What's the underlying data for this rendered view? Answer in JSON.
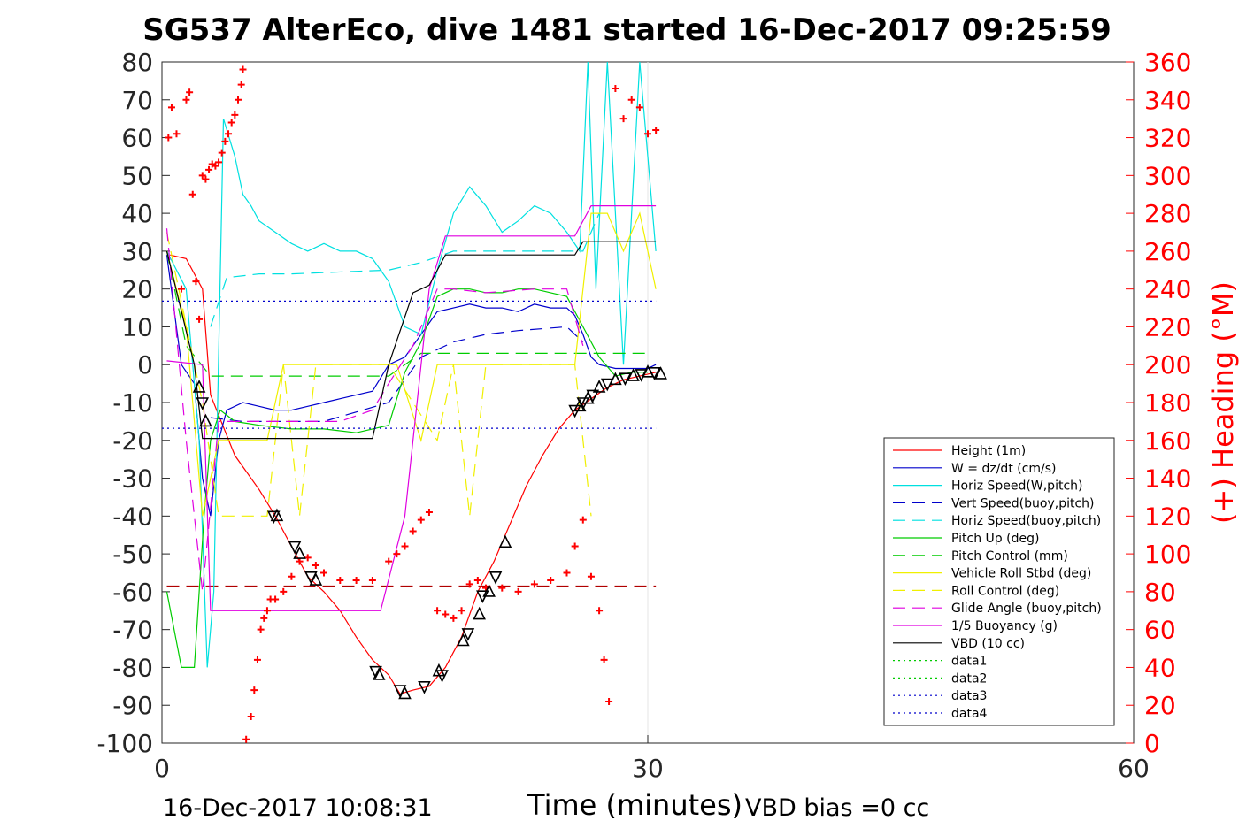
{
  "chart_data": {
    "type": "line",
    "title": "SG537 AlterEco, dive 1481 started 16-Dec-2017 09:25:59",
    "xlabel": "Time (minutes)",
    "ylabel": "",
    "ylabel_right": "(+) Heading (°M)",
    "xlim": [
      0,
      60
    ],
    "ylim": [
      -100,
      80
    ],
    "ylim_right": [
      0,
      360
    ],
    "xticks": [
      "0",
      "30",
      "60"
    ],
    "yticks": [
      "80",
      "70",
      "60",
      "50",
      "40",
      "30",
      "20",
      "10",
      "0",
      "-10",
      "-20",
      "-30",
      "-40",
      "-50",
      "-60",
      "-70",
      "-80",
      "-90",
      "-100"
    ],
    "yticks_right": [
      "360",
      "340",
      "320",
      "300",
      "280",
      "260",
      "240",
      "220",
      "200",
      "180",
      "160",
      "140",
      "120",
      "100",
      "80",
      "60",
      "40",
      "20",
      "0"
    ],
    "grid": "x at 30 only",
    "legend_position": "lower-right",
    "footer_left": "16-Dec-2017 10:08:31",
    "footer_right": "VBD bias =0 cc",
    "series": [
      {
        "name": "Height (1m)",
        "color": "#ff0000",
        "style": "solid",
        "x": [
          0.5,
          1.5,
          2.5,
          3.0,
          4.5,
          6.0,
          7.0,
          8.0,
          9.0,
          10.0,
          11.0,
          12.0,
          13.0,
          14.0,
          14.7,
          15.5,
          16.5,
          17.5,
          18.5,
          19.5,
          20.5,
          21.5,
          22.5,
          23.5,
          24.5,
          25.5,
          26.5,
          27.5,
          28.5,
          29.5,
          30.5
        ],
        "y": [
          29,
          28,
          20,
          -8,
          -24,
          -33,
          -40,
          -48,
          -56,
          -60,
          -65,
          -72,
          -78,
          -82,
          -87,
          -86,
          -85,
          -80,
          -72,
          -60,
          -52,
          -42,
          -32,
          -24,
          -17,
          -12,
          -9,
          -6,
          -4,
          -3,
          -2
        ]
      },
      {
        "name": "W = dz/dt (cm/s)",
        "color": "#0000cc",
        "style": "solid",
        "x": [
          0.3,
          1.2,
          2.0,
          2.5,
          3.0,
          3.5,
          4.0,
          5.0,
          6.0,
          7.0,
          8.0,
          9.0,
          10.0,
          11.0,
          12.0,
          13.0,
          14.0,
          15.0,
          16.0,
          17.0,
          18.0,
          19.0,
          20.0,
          21.0,
          22.0,
          23.0,
          24.0,
          25.0,
          25.5,
          26.0,
          26.5,
          27.0,
          28.0,
          29.0,
          30.0,
          30.5
        ],
        "y": [
          29,
          0,
          -5,
          -30,
          -40,
          -20,
          -12,
          -10,
          -11,
          -12,
          -12,
          -11,
          -10,
          -9,
          -8,
          -7,
          0,
          2,
          8,
          14,
          15,
          16,
          15,
          15,
          14,
          16,
          15,
          15,
          13,
          8,
          2,
          0,
          -1,
          -1,
          -1,
          0
        ]
      },
      {
        "name": "Horiz Speed(W,pitch)",
        "color": "#00e0e0",
        "style": "solid",
        "x": [
          0.3,
          1.5,
          2.3,
          2.8,
          3.2,
          3.8,
          4.5,
          5.0,
          5.5,
          6.0,
          7.0,
          8.0,
          9.0,
          10.0,
          11.0,
          12.0,
          13.0,
          14.0,
          15.0,
          16.0,
          17.0,
          18.0,
          19.0,
          20.0,
          21.0,
          22.0,
          23.0,
          24.0,
          25.0,
          25.8,
          26.3,
          26.8,
          27.5,
          28.5,
          29.5,
          30.5
        ],
        "y": [
          30,
          20,
          -20,
          -80,
          -60,
          65,
          55,
          45,
          42,
          38,
          35,
          32,
          30,
          32,
          30,
          30,
          28,
          22,
          10,
          8,
          25,
          40,
          47,
          42,
          35,
          38,
          42,
          40,
          35,
          30,
          80,
          20,
          80,
          0,
          80,
          30
        ]
      },
      {
        "name": "Vert Speed(buoy,pitch)",
        "color": "#0000cc",
        "style": "dashed",
        "x": [
          3.0,
          5.0,
          10.0,
          14.0,
          16.0,
          18.0,
          20.0,
          22.0,
          25.0,
          26.0
        ],
        "y": [
          -14,
          -15,
          -15,
          -10,
          2,
          6,
          8,
          9,
          10,
          6
        ]
      },
      {
        "name": "Horiz Speed(buoy,pitch)",
        "color": "#00e0e0",
        "style": "dashed",
        "x": [
          3.0,
          4.0,
          6.0,
          8.0,
          14.0,
          16.0,
          18.0,
          20.0,
          24.0,
          26.0,
          27.0
        ],
        "y": [
          10,
          23,
          24,
          24,
          25,
          27,
          30,
          30,
          30,
          30,
          40
        ]
      },
      {
        "name": "Pitch Up (deg)",
        "color": "#00cc00",
        "style": "solid",
        "x": [
          0.3,
          1.2,
          2.0,
          2.6,
          3.0,
          3.6,
          4.5,
          6.0,
          8.0,
          10.0,
          12.0,
          14.0,
          15.0,
          16.0,
          17.0,
          18.0,
          19.0,
          20.0,
          21.0,
          22.0,
          23.0,
          24.0,
          25.0,
          26.0,
          27.0,
          28.0,
          29.0,
          30.0
        ],
        "y": [
          -60,
          -80,
          -80,
          -40,
          -20,
          -12,
          -15,
          -16,
          -17,
          -17,
          -18,
          -16,
          -2,
          6,
          18,
          20,
          20,
          19,
          19,
          20,
          20,
          19,
          18,
          10,
          2,
          -3,
          -2,
          -2
        ]
      },
      {
        "name": "Pitch Control (mm)",
        "color": "#00cc00",
        "style": "dashed",
        "x": [
          0.3,
          1.5,
          3.0,
          8.0,
          14.0,
          16.0,
          20.0,
          26.0,
          30.0
        ],
        "y": [
          30,
          5,
          -3,
          -3,
          -3,
          3,
          3,
          3,
          3
        ]
      },
      {
        "name": "Vehicle Roll Stbd (deg)",
        "color": "#f0f000",
        "style": "solid",
        "x": [
          0.3,
          1.5,
          2.5,
          3.5,
          5.0,
          6.5,
          7.5,
          9.0,
          11.0,
          13.0,
          14.5,
          16.0,
          17.0,
          18.0,
          20.0,
          22.0,
          24.0,
          25.5,
          26.5,
          27.5,
          28.5,
          29.5,
          30.5
        ],
        "y": [
          30,
          10,
          -40,
          -20,
          -20,
          -20,
          0,
          0,
          0,
          0,
          0,
          -20,
          0,
          0,
          0,
          0,
          0,
          0,
          40,
          40,
          30,
          40,
          20
        ]
      },
      {
        "name": "Roll Control (deg)",
        "color": "#f0f000",
        "style": "dashed",
        "x": [
          0.3,
          2.5,
          3.5,
          6.5,
          7.5,
          8.5,
          9.5,
          10.0,
          12.0,
          14.0,
          17.0,
          18.0,
          19.0,
          20.0,
          25.5,
          26.5
        ],
        "y": [
          35,
          -10,
          -40,
          -40,
          0,
          -40,
          0,
          0,
          0,
          0,
          -20,
          0,
          -40,
          0,
          0,
          -40
        ]
      },
      {
        "name": "Glide Angle (buoy,pitch)",
        "color": "#e000e0",
        "style": "dashed",
        "x": [
          0.3,
          1.5,
          2.5,
          3.5,
          5.0,
          7.0,
          9.0,
          11.0,
          13.0,
          14.0,
          15.5,
          17.0,
          18.0,
          20.0,
          23.0,
          25.0,
          26.0
        ],
        "y": [
          36,
          -20,
          -60,
          -15,
          -15,
          -15,
          -15,
          -15,
          -12,
          -5,
          5,
          20,
          20,
          19,
          20,
          20,
          5
        ]
      },
      {
        "name": "1/5 Buoyancy (g)",
        "color": "#e000e0",
        "style": "solid",
        "x": [
          0.3,
          2.5,
          3.0,
          13.5,
          15.0,
          16.5,
          17.5,
          25.5,
          26.5,
          30.5
        ],
        "y": [
          1,
          0,
          -65,
          -65,
          -40,
          20,
          34,
          34,
          42,
          42
        ]
      },
      {
        "name": "VBD (10 cc)",
        "color": "#000000",
        "style": "solid",
        "x": [
          0.3,
          2.0,
          2.5,
          13.0,
          14.0,
          15.5,
          16.5,
          17.5,
          25.5,
          26.0,
          30.5
        ],
        "y": [
          30,
          0,
          -19.5,
          -19.5,
          0,
          19,
          21,
          29,
          29,
          32.5,
          32.5
        ]
      },
      {
        "name": "data1",
        "color": "#00cc00",
        "style": "dotted",
        "x": [],
        "y": []
      },
      {
        "name": "data2",
        "color": "#00cc00",
        "style": "dotted",
        "x": [],
        "y": []
      },
      {
        "name": "data3",
        "color": "#0000cc",
        "style": "dotted",
        "x": [
          0,
          30.5
        ],
        "y": [
          16.8,
          16.8
        ]
      },
      {
        "name": "data4",
        "color": "#0000cc",
        "style": "dotted",
        "x": [
          0,
          30.5
        ],
        "y": [
          -16.8,
          -16.8
        ]
      }
    ],
    "reference_lines": [
      {
        "color": "#b00000",
        "style": "dashed",
        "y": -58.5,
        "x": [
          0.3,
          30.5
        ]
      }
    ],
    "heading_points": {
      "name": "Heading",
      "color": "#ff0000",
      "axis": "right",
      "x": [
        0.4,
        0.6,
        0.9,
        1.2,
        1.5,
        1.7,
        1.9,
        2.1,
        2.3,
        2.5,
        2.7,
        2.9,
        3.1,
        3.3,
        3.5,
        3.7,
        3.9,
        4.1,
        4.3,
        4.5,
        4.7,
        4.9,
        5.0,
        5.2,
        5.5,
        5.7,
        5.9,
        6.1,
        6.3,
        6.5,
        6.7,
        7.0,
        7.5,
        8.0,
        8.5,
        9.0,
        9.5,
        10.0,
        11.0,
        12.0,
        13.0,
        14.0,
        14.5,
        15.0,
        15.5,
        16.0,
        16.5,
        17.0,
        17.5,
        18.0,
        18.5,
        19.0,
        19.5,
        20.0,
        21.0,
        22.0,
        23.0,
        24.0,
        25.0,
        25.5,
        26.0,
        26.5,
        27.0,
        27.3,
        27.6,
        28.0,
        28.5,
        29.0,
        29.5,
        30.0,
        30.5
      ],
      "y": [
        320,
        336,
        322,
        240,
        340,
        344,
        290,
        244,
        224,
        300,
        298,
        303,
        306,
        305,
        307,
        312,
        318,
        322,
        328,
        332,
        340,
        348,
        356,
        2,
        14,
        28,
        44,
        60,
        66,
        70,
        76,
        76,
        80,
        88,
        96,
        98,
        94,
        90,
        86,
        86,
        86,
        96,
        100,
        104,
        112,
        118,
        122,
        70,
        68,
        66,
        70,
        84,
        86,
        82,
        82,
        80,
        84,
        86,
        90,
        104,
        118,
        88,
        70,
        44,
        22,
        346,
        330,
        340,
        336,
        322,
        324
      ]
    },
    "depth_markers": {
      "name": "Height (1m) markers",
      "color": "#000000",
      "x": [
        2.3,
        2.5,
        2.7,
        6.9,
        7.1,
        8.2,
        8.5,
        9.2,
        9.5,
        13.2,
        13.4,
        14.7,
        15.0,
        16.2,
        17.1,
        17.3,
        18.6,
        18.9,
        19.6,
        19.8,
        20.2,
        20.6,
        21.2,
        25.5,
        25.8,
        26.0,
        26.3,
        26.6,
        27.0,
        27.5,
        28.0,
        28.6,
        29.1,
        29.6,
        30.0,
        30.4,
        30.8
      ],
      "y": [
        -6,
        -10,
        -15,
        -40,
        -40,
        -48,
        -50,
        -56,
        -57,
        -81,
        -82,
        -86,
        -87,
        -85,
        -81,
        -82,
        -73,
        -71,
        -66,
        -61,
        -60,
        -56,
        -47,
        -12,
        -11,
        -10,
        -9,
        -8,
        -6,
        -5,
        -4,
        -3.5,
        -3,
        -2.5,
        -2,
        -2,
        -2.5
      ]
    }
  }
}
